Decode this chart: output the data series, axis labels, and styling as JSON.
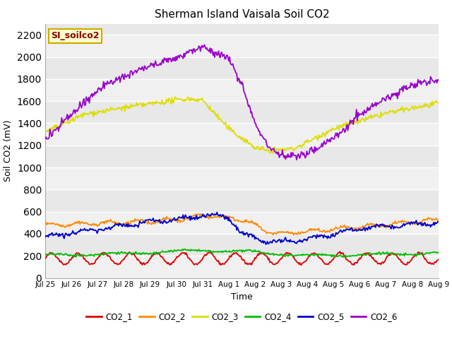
{
  "title": "Sherman Island Vaisala Soil CO2",
  "xlabel": "Time",
  "ylabel": "Soil CO2 (mV)",
  "ylim": [
    0,
    2300
  ],
  "yticks": [
    0,
    200,
    400,
    600,
    800,
    1000,
    1200,
    1400,
    1600,
    1800,
    2000,
    2200
  ],
  "legend_label": "SI_soilco2",
  "plot_bg": "#e8e8e8",
  "band_color": "#d4d4d4",
  "line_colors": {
    "CO2_1": "#dd0000",
    "CO2_2": "#ff8800",
    "CO2_3": "#dddd00",
    "CO2_4": "#00bb00",
    "CO2_5": "#0000cc",
    "CO2_6": "#9900cc"
  },
  "n_points": 500,
  "xtick_labels": [
    "Jul 25",
    "Jul 26",
    "Jul 27",
    "Jul 28",
    "Jul 29",
    "Jul 30",
    "Jul 31",
    "Aug 1",
    "Aug 2",
    "Aug 3",
    "Aug 4",
    "Aug 5",
    "Aug 6",
    "Aug 7",
    "Aug 8",
    "Aug 9"
  ],
  "n_days": 16
}
